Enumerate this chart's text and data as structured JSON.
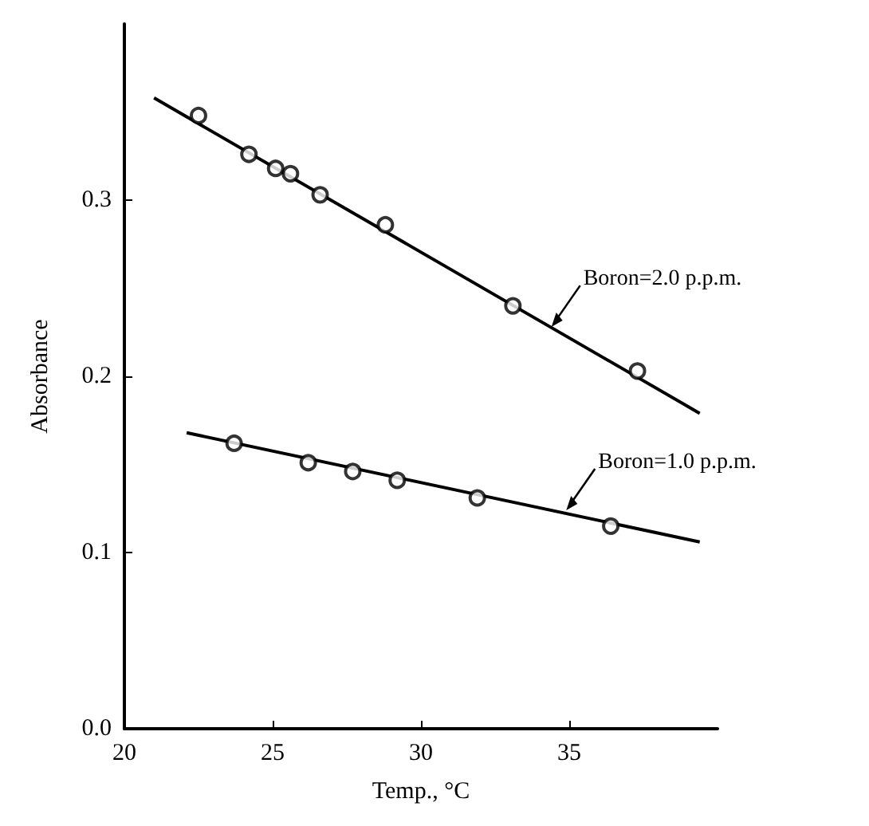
{
  "chart_data": {
    "type": "scatter",
    "xlabel": "Temp., °C",
    "ylabel": "Absorbance",
    "xlim": [
      20,
      40
    ],
    "ylim": [
      0,
      0.4
    ],
    "xticks": [
      20,
      25,
      30,
      35
    ],
    "yticks": [
      {
        "value": 0,
        "label": "0.0"
      },
      {
        "value": 0.1,
        "label": "0.1"
      },
      {
        "value": 0.2,
        "label": "0.2"
      },
      {
        "value": 0.3,
        "label": "0.3"
      }
    ],
    "grid": false,
    "marker": "circle",
    "series": [
      {
        "color": "#000000",
        "x": [
          22.5,
          24.2,
          25.1,
          25.6,
          26.6,
          28.8,
          33.1,
          37.3
        ],
        "values": [
          0.348,
          0.326,
          0.318,
          0.315,
          0.303,
          0.286,
          0.24,
          0.203
        ]
      },
      {
        "color": "#000000",
        "x": [
          23.7,
          26.2,
          27.7,
          29.2,
          31.9,
          36.4
        ],
        "values": [
          0.162,
          0.151,
          0.146,
          0.141,
          0.131,
          0.115
        ]
      },
      {
        "type": "line",
        "color": "#000000",
        "marker": "none",
        "line_style": "solid",
        "x": [
          21.0,
          39.4
        ],
        "values": [
          0.358,
          0.179
        ]
      },
      {
        "type": "line",
        "color": "#000000",
        "marker": "none",
        "line_style": "solid",
        "x": [
          22.1,
          39.4
        ],
        "values": [
          0.168,
          0.106
        ]
      }
    ],
    "annotations": [
      {
        "text": "Boron=2.0 p.p.m.",
        "x": 34.4,
        "y": 0.228
      },
      {
        "text": "Boron=1.0 p.p.m.",
        "x": 34.9,
        "y": 0.124
      }
    ]
  }
}
